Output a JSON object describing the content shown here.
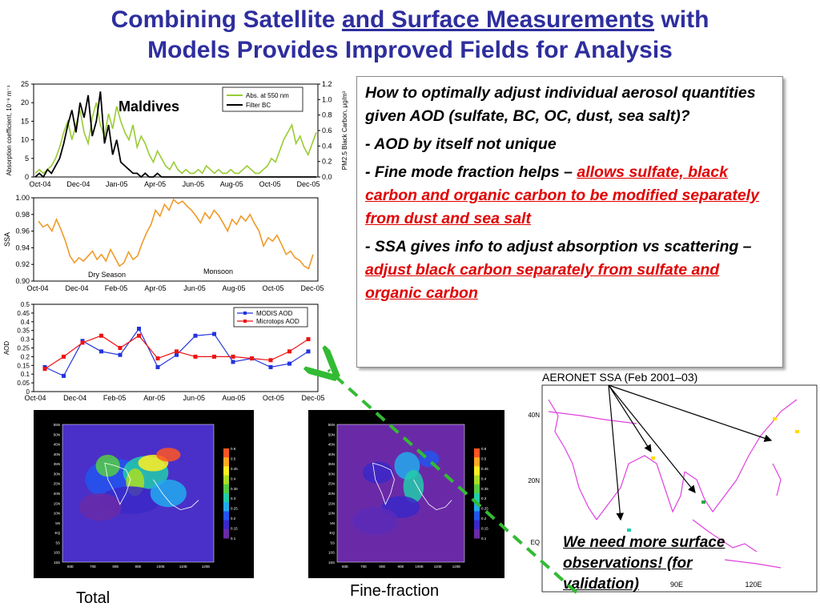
{
  "slide": {
    "title_part1": "Combining Satellite ",
    "title_part2": "and Surface Measurements",
    "title_part3": " with",
    "title_line2": "Models Provides Improved Fields for Analysis"
  },
  "textbox": {
    "question": "How to optimally adjust individual aerosol quantities given AOD (sulfate, BC, OC, dust, sea salt)?",
    "b1": "- AOD by itself not unique",
    "b2_plain": "- Fine mode fraction helps – ",
    "b2_red": "allows sulfate, black carbon and organic carbon to be modified separately from dust and sea salt",
    "b3_plain": "- SSA gives info to adjust absorption vs scattering – ",
    "b3_red": "adjust black carbon separately from sulfate and organic carbon"
  },
  "maps": {
    "total_label": "Total",
    "fine_label": "Fine-fraction",
    "colorbar_ticks": [
      "0.8",
      "0.5",
      "0.45",
      "0.4",
      "0.35",
      "0.3",
      "0.25",
      "0.2",
      "0.15",
      "0.1"
    ],
    "lat_labels": [
      "55N",
      "50N",
      "45N",
      "40N",
      "35N",
      "30N",
      "25N",
      "20N",
      "15N",
      "10N",
      "5N",
      "EQ",
      "5S",
      "10S",
      "15S"
    ],
    "lon_labels": [
      "60E",
      "70E",
      "80E",
      "90E",
      "100E",
      "110E",
      "120E"
    ]
  },
  "aeronet": {
    "title": "AERONET SSA (Feb 2001–03)",
    "lat_labels": [
      "40N",
      "20N",
      "EQ"
    ],
    "lon_labels": [
      "90E",
      "120E"
    ],
    "callout": "We need more surface observations! (for validation)",
    "colors": {
      "coast": "#e040e0",
      "arrow": "#000000",
      "dashed": "#33bb33"
    }
  },
  "chart_data": [
    {
      "type": "line",
      "annotation": "Maldives",
      "ylabel": "Absorption coefficient, 10⁻⁶ m⁻¹",
      "y2label": "PM2.5 Black Carbon, μg/m³",
      "yticks": [
        0,
        5,
        10,
        15,
        20,
        25
      ],
      "y2ticks": [
        "0.0",
        "0.2",
        "0.4",
        "0.6",
        "0.8",
        "1.0",
        "1.2"
      ],
      "ylim": [
        0,
        25
      ],
      "y2lim": [
        0,
        1.2
      ],
      "x_tick_labels": [
        "Oct-04",
        "Dec-04",
        "Jan-05",
        "Apr-05",
        "Jun-05",
        "Aug-05",
        "Oct-05",
        "Dec-05"
      ],
      "series": [
        {
          "name": "Abs. at 550 nm",
          "color": "#99cc33",
          "axis": "left",
          "values": [
            1,
            2,
            1,
            2,
            3,
            5,
            8,
            12,
            15,
            10,
            14,
            18,
            12,
            9,
            16,
            20,
            14,
            11,
            17,
            13,
            19,
            15,
            12,
            10,
            14,
            8,
            11,
            9,
            6,
            4,
            7,
            5,
            3,
            2,
            4,
            2,
            1,
            2,
            1,
            1,
            2,
            1,
            3,
            2,
            1,
            2,
            1,
            1,
            2,
            1,
            1,
            2,
            3,
            2,
            1,
            1,
            2,
            3,
            5,
            4,
            7,
            10,
            12,
            14,
            9,
            11,
            8,
            6,
            9,
            12
          ]
        },
        {
          "name": "Filter BC",
          "color": "#000000",
          "axis": "left",
          "values": [
            0,
            1,
            0,
            2,
            1,
            3,
            5,
            9,
            14,
            18,
            12,
            20,
            16,
            22,
            11,
            15,
            23,
            9,
            14,
            6,
            10,
            4,
            3,
            2,
            1,
            1,
            0,
            1,
            0,
            0,
            1,
            0,
            0,
            0,
            0,
            0,
            0,
            0,
            0,
            0,
            0,
            0,
            0,
            0,
            0,
            0,
            0,
            0,
            0,
            0,
            0,
            0,
            0,
            0,
            0,
            0,
            0,
            0,
            0,
            0,
            0,
            0,
            0,
            0,
            0,
            0,
            0,
            0,
            0,
            0
          ]
        }
      ]
    },
    {
      "type": "line",
      "ylabel": "SSA",
      "yticks": [
        "0.90",
        "0.92",
        "0.94",
        "0.96",
        "0.98",
        "1.00"
      ],
      "ylim": [
        0.9,
        1.0
      ],
      "x_tick_labels": [
        "Oct-04",
        "Dec-04",
        "Feb-05",
        "Apr-05",
        "Jun-05",
        "Aug-05",
        "Oct-05",
        "Dec-05"
      ],
      "annotations": [
        "Dry Season",
        "Monsoon"
      ],
      "series": [
        {
          "name": "",
          "color": "#f09a28",
          "values": [
            0.972,
            0.965,
            0.968,
            0.96,
            0.974,
            0.962,
            0.948,
            0.93,
            0.922,
            0.928,
            0.924,
            0.93,
            0.936,
            0.926,
            0.932,
            0.924,
            0.938,
            0.928,
            0.918,
            0.922,
            0.935,
            0.926,
            0.93,
            0.945,
            0.958,
            0.968,
            0.985,
            0.978,
            0.992,
            0.985,
            0.998,
            0.993,
            0.996,
            0.99,
            0.985,
            0.978,
            0.97,
            0.982,
            0.975,
            0.985,
            0.979,
            0.97,
            0.96,
            0.974,
            0.968,
            0.978,
            0.972,
            0.98,
            0.969,
            0.96,
            0.942,
            0.952,
            0.948,
            0.955,
            0.944,
            0.932,
            0.936,
            0.928,
            0.925,
            0.918,
            0.915,
            0.932
          ]
        }
      ]
    },
    {
      "type": "line",
      "ylabel": "AOD",
      "yticks": [
        "0",
        "0.05",
        "0.1",
        "0.15",
        "0.2",
        "0.25",
        "0.3",
        "0.35",
        "0.4",
        "0.45",
        "0.5"
      ],
      "ylim": [
        0,
        0.5
      ],
      "x_tick_labels": [
        "Oct-04",
        "Dec-04",
        "Feb-05",
        "Apr-05",
        "Jun-05",
        "Aug-05",
        "Oct-05",
        "Dec-05"
      ],
      "series": [
        {
          "name": "MODIS AOD",
          "color": "#2233dd",
          "values": [
            0.14,
            0.09,
            0.29,
            0.23,
            0.21,
            0.36,
            0.14,
            0.21,
            0.32,
            0.33,
            0.17,
            0.19,
            0.14,
            0.16,
            0.23
          ]
        },
        {
          "name": "Microtops AOD",
          "color": "#ee1111",
          "values": [
            0.13,
            0.2,
            0.28,
            0.32,
            0.25,
            0.32,
            0.19,
            0.23,
            0.2,
            0.2,
            0.2,
            0.19,
            0.18,
            0.23,
            0.3
          ]
        }
      ]
    }
  ]
}
